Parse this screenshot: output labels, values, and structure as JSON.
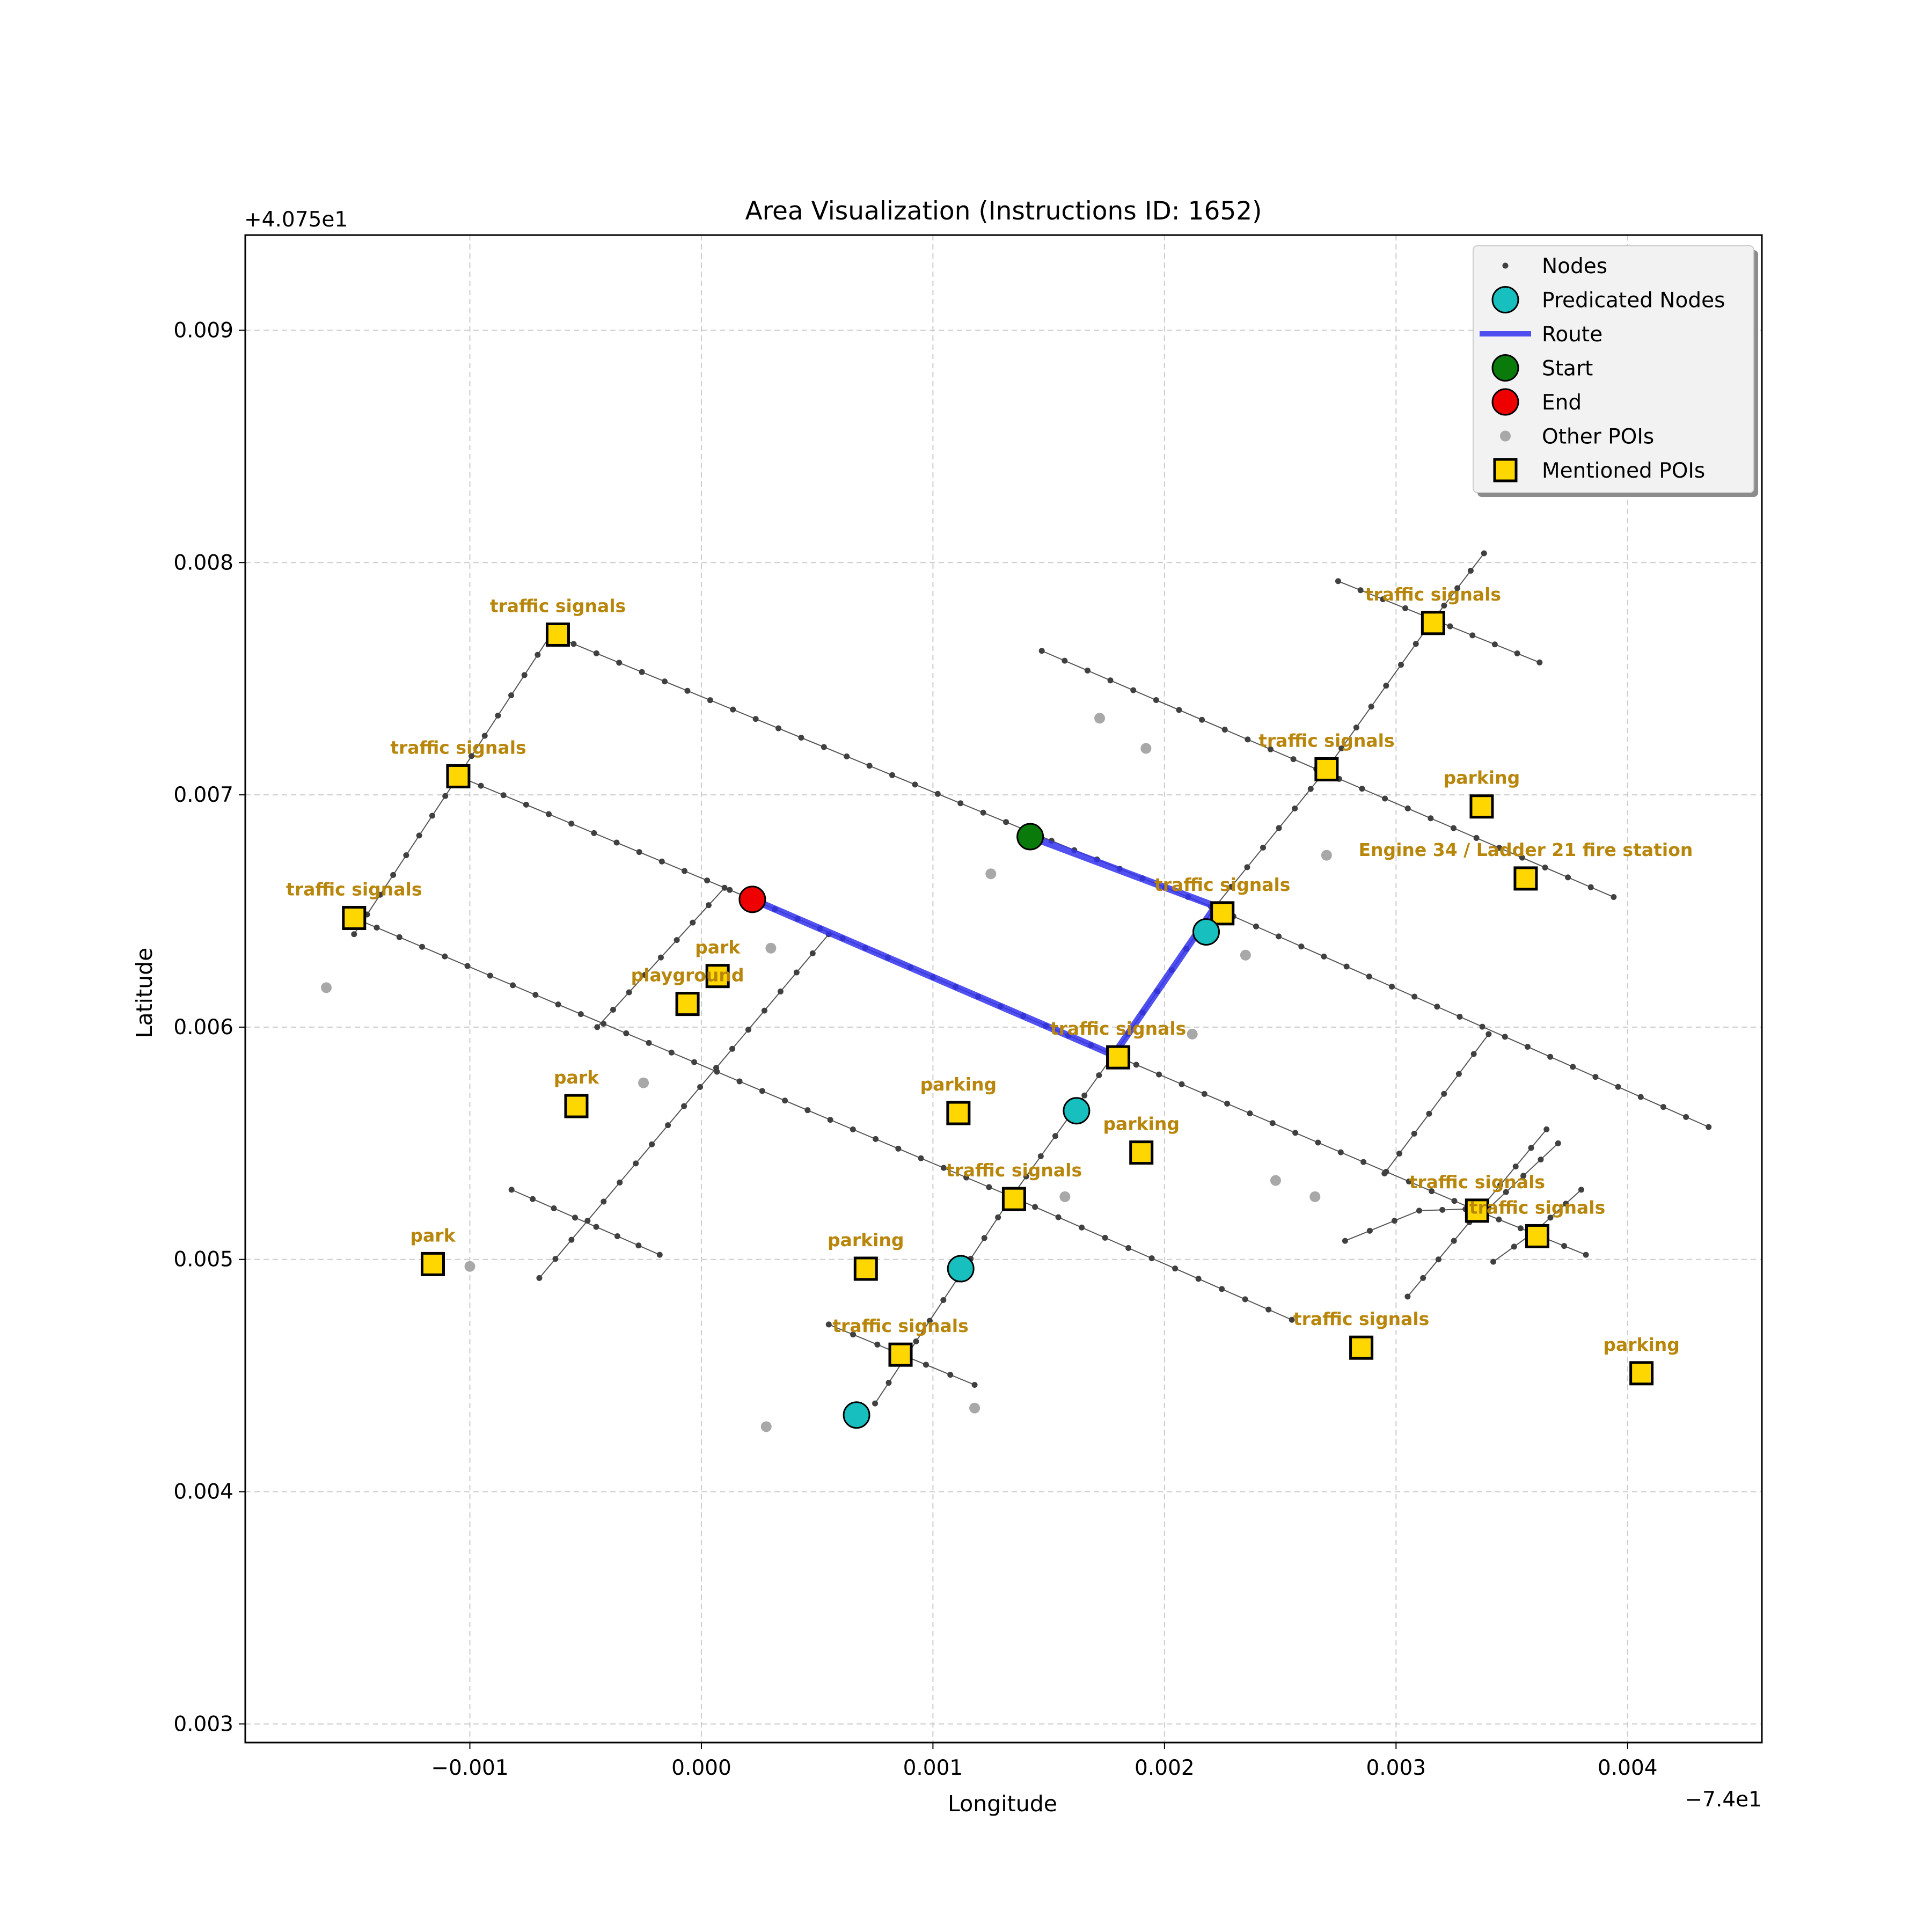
{
  "chart_data": {
    "type": "scatter",
    "title": "Area Visualization (Instructions ID: 1652)",
    "xlabel": "Longitude",
    "ylabel": "Latitude",
    "x_offset_label": "−7.4e1",
    "y_offset_label": "+4.075e1",
    "xlim": [
      -0.00197,
      0.00458
    ],
    "ylim": [
      0.00292,
      0.00941
    ],
    "x_ticks": [
      -0.001,
      0.0,
      0.001,
      0.002,
      0.003,
      0.004
    ],
    "x_tick_labels": [
      "−0.001",
      "0.000",
      "0.001",
      "0.002",
      "0.003",
      "0.004"
    ],
    "y_ticks": [
      0.003,
      0.004,
      0.005,
      0.006,
      0.007,
      0.008,
      0.009
    ],
    "y_tick_labels": [
      "0.003",
      "0.004",
      "0.005",
      "0.006",
      "0.007",
      "0.008",
      "0.009"
    ],
    "grid": true,
    "legend_position": "top-right",
    "colors": {
      "nodes": "#404040",
      "ways": "#555555",
      "predicted": "#17bfbf",
      "route": "#3333ee",
      "start": "#0a7a0a",
      "end": "#ee0000",
      "other_poi": "#a8a8a8",
      "mentioned_poi": "#ffd700",
      "poi_label": "#b8860b"
    },
    "legend": [
      {
        "label": "Nodes",
        "marker": "node"
      },
      {
        "label": "Predicated Nodes",
        "marker": "predicted"
      },
      {
        "label": "Route",
        "marker": "route"
      },
      {
        "label": "Start",
        "marker": "start"
      },
      {
        "label": "End",
        "marker": "end"
      },
      {
        "label": "Other POIs",
        "marker": "other"
      },
      {
        "label": "Mentioned POIs",
        "marker": "mentioned"
      }
    ],
    "ways": [
      [
        [
          -0.00065,
          0.00769
        ],
        [
          0.0022,
          0.00652
        ],
        [
          0.00435,
          0.00557
        ]
      ],
      [
        [
          -0.00105,
          0.00708
        ],
        [
          0.00022,
          0.00655
        ],
        [
          0.00178,
          0.00588
        ],
        [
          0.00335,
          0.00521
        ],
        [
          0.00382,
          0.00502
        ]
      ],
      [
        [
          -0.0015,
          0.00647
        ],
        [
          0.00134,
          0.00527
        ],
        [
          0.00255,
          0.00474
        ]
      ],
      [
        [
          0.00147,
          0.00762
        ],
        [
          0.00394,
          0.00656
        ]
      ],
      [
        [
          0.00275,
          0.00792
        ],
        [
          0.00362,
          0.00757
        ]
      ],
      [
        [
          -0.00082,
          0.0053
        ],
        [
          -0.00018,
          0.00502
        ]
      ],
      [
        [
          0.00055,
          0.00472
        ],
        [
          0.00118,
          0.00446
        ]
      ],
      [
        [
          -0.0015,
          0.0064
        ],
        [
          -0.00105,
          0.00708
        ],
        [
          -0.00065,
          0.00769
        ]
      ],
      [
        [
          0.00075,
          0.00438
        ],
        [
          0.00134,
          0.00527
        ],
        [
          0.00178,
          0.00588
        ],
        [
          0.00222,
          0.00652
        ],
        [
          0.0027,
          0.00711
        ],
        [
          0.00315,
          0.00774
        ],
        [
          0.00338,
          0.00804
        ]
      ],
      [
        [
          -0.0007,
          0.00492
        ],
        [
          0.00055,
          0.0064
        ]
      ],
      [
        [
          -0.00045,
          0.006
        ],
        [
          0.0001,
          0.0066
        ]
      ],
      [
        [
          0.00295,
          0.00537
        ],
        [
          0.0034,
          0.00597
        ]
      ],
      [
        [
          0.00305,
          0.00484
        ],
        [
          0.00365,
          0.00556
        ]
      ],
      [
        [
          0.00278,
          0.00508
        ],
        [
          0.0031,
          0.00521
        ],
        [
          0.0034,
          0.00522
        ],
        [
          0.0037,
          0.0055
        ]
      ],
      [
        [
          0.00342,
          0.00499
        ],
        [
          0.0036,
          0.00512
        ],
        [
          0.0038,
          0.0053
        ]
      ]
    ],
    "route": [
      [
        0.00142,
        0.00682
      ],
      [
        0.00222,
        0.00652
      ],
      [
        0.00178,
        0.00588
      ],
      [
        0.00022,
        0.00655
      ]
    ],
    "predicted_nodes": [
      [
        0.00218,
        0.00641
      ],
      [
        0.00162,
        0.00564
      ],
      [
        0.00112,
        0.00496
      ],
      [
        0.00067,
        0.00433
      ]
    ],
    "start": [
      0.00142,
      0.00682
    ],
    "end": [
      0.00022,
      0.00655
    ],
    "other_pois": [
      [
        0.00172,
        0.00733
      ],
      [
        0.00192,
        0.0072
      ],
      [
        0.00125,
        0.00666
      ],
      [
        0.0027,
        0.00674
      ],
      [
        0.00235,
        0.00631
      ],
      [
        0.00212,
        0.00597
      ],
      [
        0.0003,
        0.00634
      ],
      [
        -0.00025,
        0.00576
      ],
      [
        -0.00162,
        0.00617
      ],
      [
        0.00157,
        0.00527
      ],
      [
        0.00248,
        0.00534
      ],
      [
        0.00265,
        0.00527
      ],
      [
        -0.001,
        0.00497
      ],
      [
        0.00028,
        0.00428
      ],
      [
        0.00118,
        0.00436
      ]
    ],
    "mentioned_pois": [
      {
        "label": "traffic signals",
        "x": -0.00062,
        "y": 0.00769
      },
      {
        "label": "traffic signals",
        "x": -0.00105,
        "y": 0.00708
      },
      {
        "label": "traffic signals",
        "x": -0.0015,
        "y": 0.00647
      },
      {
        "label": "traffic signals",
        "x": 0.00316,
        "y": 0.00774
      },
      {
        "label": "traffic signals",
        "x": 0.0027,
        "y": 0.00711
      },
      {
        "label": "parking",
        "x": 0.00337,
        "y": 0.00695
      },
      {
        "label": "Engine 34 / Ladder 21 fire station",
        "x": 0.00356,
        "y": 0.00664
      },
      {
        "label": "traffic signals",
        "x": 0.00225,
        "y": 0.00649
      },
      {
        "label": "park",
        "x": 7e-05,
        "y": 0.00622
      },
      {
        "label": "playground",
        "x": -6e-05,
        "y": 0.0061
      },
      {
        "label": "traffic signals",
        "x": 0.0018,
        "y": 0.00587
      },
      {
        "label": "park",
        "x": -0.00054,
        "y": 0.00566
      },
      {
        "label": "parking",
        "x": 0.00111,
        "y": 0.00563
      },
      {
        "label": "parking",
        "x": 0.0019,
        "y": 0.00546
      },
      {
        "label": "traffic signals",
        "x": 0.00135,
        "y": 0.00526
      },
      {
        "label": "traffic signals",
        "x": 0.00335,
        "y": 0.00521
      },
      {
        "label": "traffic signals",
        "x": 0.00361,
        "y": 0.0051
      },
      {
        "label": "park",
        "x": -0.00116,
        "y": 0.00498
      },
      {
        "label": "parking",
        "x": 0.00071,
        "y": 0.00496
      },
      {
        "label": "traffic signals",
        "x": 0.00086,
        "y": 0.00459
      },
      {
        "label": "traffic signals",
        "x": 0.00285,
        "y": 0.00462
      },
      {
        "label": "parking",
        "x": 0.00406,
        "y": 0.00451
      }
    ]
  }
}
